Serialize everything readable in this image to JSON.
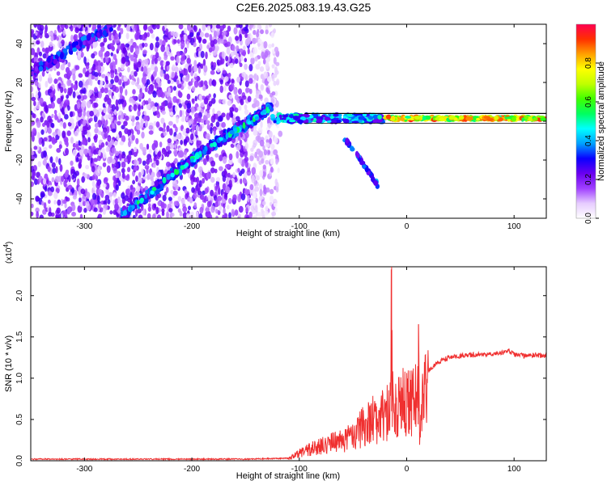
{
  "title": "C2E6.2025.083.19.43.G25",
  "chart_data": [
    {
      "type": "heatmap",
      "title": "C2E6.2025.083.19.43.G25",
      "xlabel": "Height of straight line (km)",
      "ylabel": "Frequency (Hz)",
      "xlim": [
        -350,
        130
      ],
      "ylim": [
        -50,
        50
      ],
      "x_ticks": [
        -300,
        -200,
        -100,
        0,
        100
      ],
      "y_ticks": [
        -40,
        -20,
        0,
        20,
        40
      ],
      "colorbar": {
        "label": "Normalized spectral amplitude",
        "range": [
          0,
          1
        ],
        "ticks": [
          0.0,
          0.2,
          0.4,
          0.6,
          0.8
        ],
        "colors": [
          "#ffffff",
          "#e6ccff",
          "#a040ff",
          "#6a00f0",
          "#0a00ff",
          "#00a0ff",
          "#00ffff",
          "#00ff60",
          "#40ff00",
          "#c0ff00",
          "#ffff00",
          "#ffa000",
          "#ff3000",
          "#ff0050"
        ]
      },
      "features": {
        "noise_region_x": [
          -350,
          -120
        ],
        "diagonal_track": [
          {
            "x": -265,
            "y": -48
          },
          {
            "x": -240,
            "y": -38
          },
          {
            "x": -220,
            "y": -28
          },
          {
            "x": -200,
            "y": -20
          },
          {
            "x": -180,
            "y": -12
          },
          {
            "x": -160,
            "y": -5
          },
          {
            "x": -140,
            "y": 2
          },
          {
            "x": -125,
            "y": 8
          }
        ],
        "upper_track": [
          {
            "x": -350,
            "y": 26
          },
          {
            "x": -330,
            "y": 31
          },
          {
            "x": -310,
            "y": 38
          },
          {
            "x": -290,
            "y": 44
          },
          {
            "x": -275,
            "y": 48
          }
        ],
        "carrier_line": {
          "y": 1.5,
          "x_range": [
            -125,
            130
          ]
        },
        "secondary_branch": [
          {
            "x": -58,
            "y": -9
          },
          {
            "x": -45,
            "y": -18
          },
          {
            "x": -38,
            "y": -24
          },
          {
            "x": -27,
            "y": -33
          }
        ]
      }
    },
    {
      "type": "line",
      "xlabel": "Height of straight line (km)",
      "ylabel": "SNR (10 * v/v)",
      "y_multiplier": "(x10",
      "y_multiplier_exp": "4",
      "xlim": [
        -350,
        130
      ],
      "ylim": [
        0,
        2.35
      ],
      "x_ticks": [
        -300,
        -200,
        -100,
        0,
        100
      ],
      "y_ticks": [
        0.0,
        0.5,
        1.0,
        1.5,
        2.0
      ],
      "series": [
        {
          "color": "#f03030",
          "x": [
            -350,
            -300,
            -250,
            -200,
            -150,
            -110,
            -100,
            -90,
            -80,
            -70,
            -60,
            -50,
            -45,
            -40,
            -35,
            -30,
            -25,
            -20,
            -16,
            -14,
            -13,
            -12,
            -10,
            -6,
            -2,
            0,
            5,
            10,
            11,
            12,
            15,
            20,
            25,
            30,
            35,
            40,
            50,
            60,
            70,
            80,
            90,
            95,
            100,
            110,
            120,
            130
          ],
          "y": [
            0.02,
            0.02,
            0.02,
            0.02,
            0.02,
            0.03,
            0.12,
            0.18,
            0.22,
            0.28,
            0.32,
            0.38,
            0.45,
            0.55,
            0.62,
            0.65,
            0.68,
            0.7,
            0.8,
            2.35,
            0.9,
            0.95,
            0.75,
            0.85,
            0.95,
            1.0,
            0.95,
            1.0,
            1.65,
            0.28,
            0.98,
            1.08,
            1.15,
            1.2,
            1.23,
            1.25,
            1.27,
            1.28,
            1.29,
            1.3,
            1.31,
            1.33,
            1.29,
            1.27,
            1.28,
            1.27
          ]
        }
      ]
    }
  ]
}
